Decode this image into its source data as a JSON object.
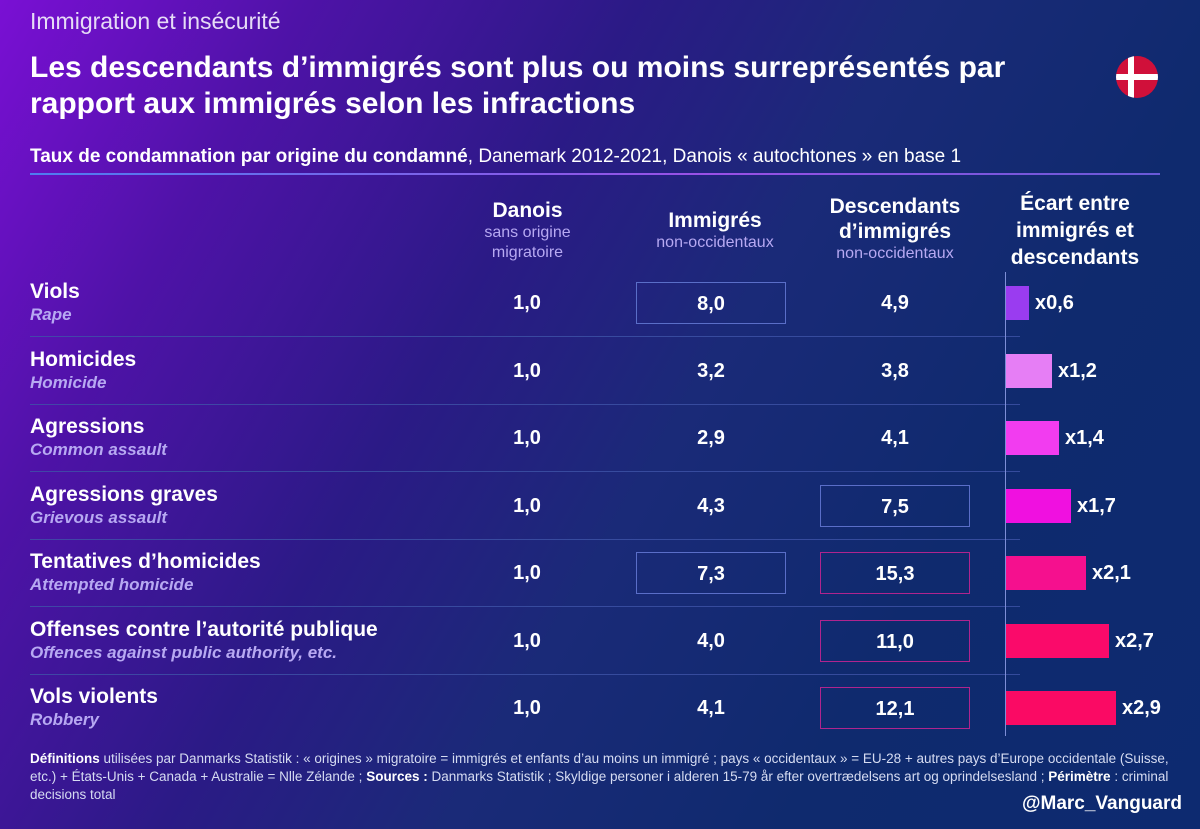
{
  "kicker": "Immigration et insécurité",
  "title": "Les descendants d’immigrés sont plus ou moins surreprésentés par rapport aux immigrés selon les infractions",
  "flag_icon": "denmark-flag",
  "subtitle": {
    "bold": "Taux de condamnation par origine du condamné",
    "rest": ", Danemark 2012-2021, Danois « autochtones » en base 1"
  },
  "columns": [
    {
      "title": "Danois",
      "sub": "sans origine migratoire"
    },
    {
      "title": "Immigrés",
      "sub": "non-occidentaux"
    },
    {
      "title": "Descendants d’immigrés",
      "sub": "non-occidentaux"
    },
    {
      "title": "Écart entre immigrés et descendants",
      "sub": ""
    }
  ],
  "chart_data": {
    "type": "table",
    "title": "Taux de condamnation par origine du condamné",
    "subtitle": "Danemark 2012-2021, Danois « autochtones » en base 1",
    "columns": [
      "Danois sans origine migratoire",
      "Immigrés non-occidentaux",
      "Descendants d’immigrés non-occidentaux",
      "Écart entre immigrés et descendants"
    ],
    "rows": [
      {
        "fr": "Viols",
        "en": "Rape",
        "danois": "1,0",
        "immigres": "8,0",
        "descendants": "4,9",
        "ratio": 0.6,
        "ratio_label": "x0,6",
        "imm_boxed": true,
        "desc_box": "none",
        "bar_color": "#9a3cf0"
      },
      {
        "fr": "Homicides",
        "en": "Homicide",
        "danois": "1,0",
        "immigres": "3,2",
        "descendants": "3,8",
        "ratio": 1.2,
        "ratio_label": "x1,2",
        "imm_boxed": false,
        "desc_box": "none",
        "bar_color": "#e67ef5"
      },
      {
        "fr": "Agressions",
        "en": "Common assault",
        "danois": "1,0",
        "immigres": "2,9",
        "descendants": "4,1",
        "ratio": 1.4,
        "ratio_label": "x1,4",
        "imm_boxed": false,
        "desc_box": "none",
        "bar_color": "#f23cf0"
      },
      {
        "fr": "Agressions graves",
        "en": "Grievous assault",
        "danois": "1,0",
        "immigres": "4,3",
        "descendants": "7,5",
        "ratio": 1.7,
        "ratio_label": "x1,7",
        "imm_boxed": false,
        "desc_box": "blue",
        "bar_color": "#f010e0"
      },
      {
        "fr": "Tentatives d’homicides",
        "en": "Attempted homicide",
        "danois": "1,0",
        "immigres": "7,3",
        "descendants": "15,3",
        "ratio": 2.1,
        "ratio_label": "x2,1",
        "imm_boxed": true,
        "desc_box": "pink",
        "bar_color": "#f5108e"
      },
      {
        "fr": "Offenses contre l’autorité publique",
        "en": "Offences against public authority, etc.",
        "danois": "1,0",
        "immigres": "4,0",
        "descendants": "11,0",
        "ratio": 2.7,
        "ratio_label": "x2,7",
        "imm_boxed": false,
        "desc_box": "pink",
        "bar_color": "#fa0a6a"
      },
      {
        "fr": "Vols violents",
        "en": "Robbery",
        "danois": "1,0",
        "immigres": "4,1",
        "descendants": "12,1",
        "ratio": 2.9,
        "ratio_label": "x2,9",
        "imm_boxed": false,
        "desc_box": "pink",
        "bar_color": "#fa0a64"
      }
    ]
  },
  "footer": {
    "def_label": "Définitions",
    "def_text": " utilisées par Danmarks Statistik : « origines » migratoire = immigrés et enfants d’au moins un immigré ; pays « occidentaux » = EU-28 + autres pays d’Europe occidentale (Suisse, etc.) + États-Unis + Canada + Australie = Nlle Zélande  ; ",
    "src_label": "Sources :",
    "src_text": " Danmarks Statistik ; Skyldige personer i alderen 15-79 år efter overtrædelsens art og oprindelsesland ; ",
    "per_label": "Périmètre",
    "per_text": " : criminal decisions total"
  },
  "handle": "@Marc_Vanguard"
}
